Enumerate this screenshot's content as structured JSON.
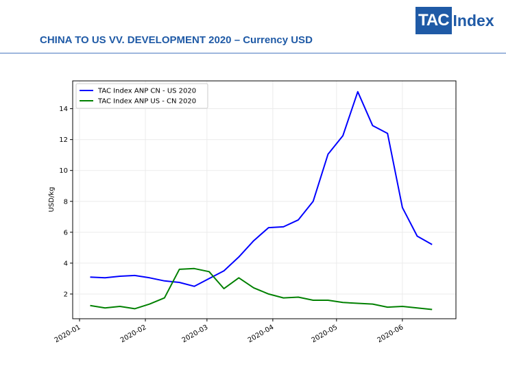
{
  "header": {
    "title": "CHINA TO US VV. DEVELOPMENT 2020 – Currency USD",
    "logo_left": "TAC",
    "logo_right": "Index"
  },
  "colors": {
    "brand": "#1f5aa6",
    "series_cn_us": "#0000ff",
    "series_us_cn": "#008000"
  },
  "chart_data": {
    "type": "line",
    "title": "",
    "xlabel": "",
    "ylabel": "USD/kg",
    "x_ticks": [
      "2020-01",
      "2020-02",
      "2020-03",
      "2020-04",
      "2020-05",
      "2020-06"
    ],
    "x_range": [
      "2020-01-01",
      "2020-06-23"
    ],
    "ylim": [
      0.4,
      15.8
    ],
    "y_ticks": [
      2,
      4,
      6,
      8,
      10,
      12,
      14
    ],
    "grid": true,
    "legend_position": "top-left",
    "x": [
      "2020-01-06",
      "2020-01-13",
      "2020-01-20",
      "2020-01-27",
      "2020-02-03",
      "2020-02-10",
      "2020-02-17",
      "2020-02-24",
      "2020-03-02",
      "2020-03-09",
      "2020-03-16",
      "2020-03-23",
      "2020-03-30",
      "2020-04-06",
      "2020-04-13",
      "2020-04-20",
      "2020-04-27",
      "2020-05-04",
      "2020-05-11",
      "2020-05-18",
      "2020-05-25",
      "2020-06-01",
      "2020-06-08",
      "2020-06-15"
    ],
    "series": [
      {
        "name": "TAC Index ANP CN - US 2020",
        "color": "#0000ff",
        "values": [
          3.1,
          3.05,
          3.15,
          3.2,
          3.05,
          2.85,
          2.75,
          2.5,
          3.0,
          3.5,
          4.4,
          5.45,
          6.3,
          6.35,
          6.8,
          8.0,
          11.05,
          12.25,
          15.1,
          12.9,
          12.4,
          7.6,
          5.75,
          5.2
        ]
      },
      {
        "name": "TAC Index ANP US - CN 2020",
        "color": "#008000",
        "values": [
          1.25,
          1.1,
          1.2,
          1.05,
          1.35,
          1.75,
          3.6,
          3.65,
          3.45,
          2.35,
          3.05,
          2.4,
          2.0,
          1.75,
          1.8,
          1.6,
          1.6,
          1.45,
          1.4,
          1.35,
          1.15,
          1.2,
          1.1,
          1.0
        ]
      }
    ]
  }
}
